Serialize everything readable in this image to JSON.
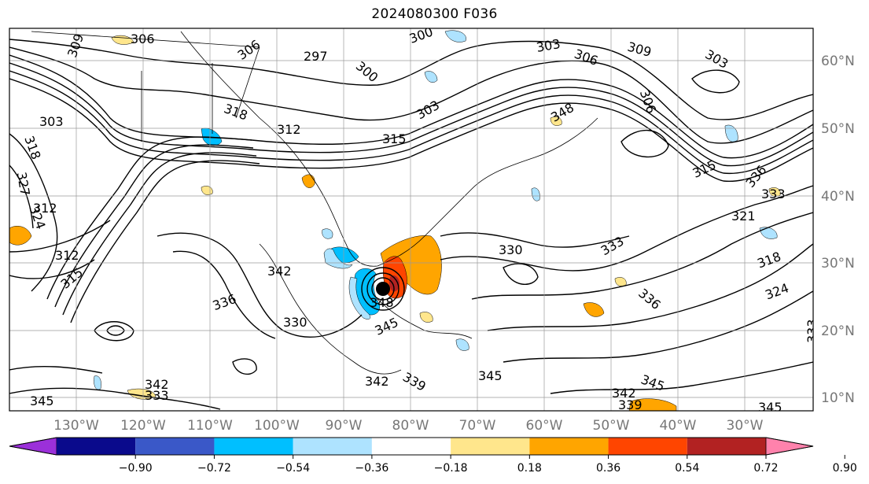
{
  "title": "2024080300 F036",
  "colors": {
    "background": "#ffffff",
    "contour": "#000000",
    "grid": "#9a9a9a",
    "lat_label": "#777777"
  },
  "axes": {
    "lon_ticks": [
      "130°W",
      "120°W",
      "110°W",
      "100°W",
      "90°W",
      "80°W",
      "70°W",
      "60°W",
      "50°W",
      "40°W",
      "30°W"
    ],
    "lat_ticks": [
      "60°N",
      "50°N",
      "40°N",
      "30°N",
      "20°N",
      "10°N"
    ]
  },
  "contour_labels": [
    "306",
    "309",
    "297",
    "300",
    "303",
    "306",
    "306",
    "303",
    "300",
    "309",
    "303",
    "306",
    "318",
    "312",
    "303",
    "315",
    "318",
    "327",
    "312",
    "324",
    "312",
    "315",
    "315",
    "336",
    "333",
    "330",
    "321",
    "324",
    "318",
    "333",
    "348",
    "345",
    "336",
    "342",
    "330",
    "345",
    "342",
    "339",
    "342",
    "333",
    "345",
    "339",
    "345",
    "333",
    "345",
    "342",
    "336",
    "348"
  ],
  "colorbar": {
    "ticks": [
      "−0.90",
      "−0.72",
      "−0.54",
      "−0.36",
      "−0.18",
      "0.18",
      "0.36",
      "0.54",
      "0.72",
      "0.90"
    ],
    "colors": [
      "#9b30d9",
      "#0a0a8c",
      "#3a58c8",
      "#00bfff",
      "#aee3ff",
      "#ffffff",
      "#ffe68c",
      "#ffa500",
      "#ff4500",
      "#b22222",
      "#ff82ac"
    ]
  },
  "storm": {
    "marker": "storm-center-icon",
    "label": "348"
  }
}
